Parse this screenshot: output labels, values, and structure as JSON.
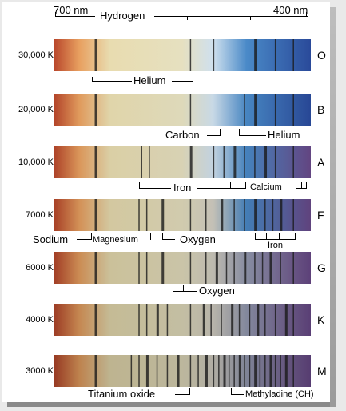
{
  "top_labels": {
    "left_nm": "700 nm",
    "right_nm": "400 nm",
    "hydrogen": "Hydrogen"
  },
  "rows": [
    {
      "temp": "30,000 K",
      "class": "O",
      "lines": [
        0.16,
        0.53,
        0.62,
        0.78,
        0.86,
        0.93
      ]
    },
    {
      "temp": "20,000 K",
      "class": "B",
      "lines": [
        0.16,
        0.53,
        0.74,
        0.78,
        0.86,
        0.93
      ]
    },
    {
      "temp": "10,000 K",
      "class": "A",
      "lines": [
        0.16,
        0.34,
        0.37,
        0.53,
        0.62,
        0.66,
        0.7,
        0.74,
        0.78,
        0.82,
        0.86,
        0.93
      ]
    },
    {
      "temp": "7000 K",
      "class": "F",
      "lines": [
        0.16,
        0.33,
        0.36,
        0.42,
        0.53,
        0.59,
        0.65,
        0.7,
        0.74,
        0.78,
        0.82,
        0.85,
        0.88,
        0.93
      ]
    },
    {
      "temp": "6000 K",
      "class": "G",
      "lines": [
        0.16,
        0.33,
        0.36,
        0.42,
        0.53,
        0.59,
        0.63,
        0.67,
        0.7,
        0.74,
        0.78,
        0.81,
        0.84,
        0.88,
        0.93
      ]
    },
    {
      "temp": "4000 K",
      "class": "K",
      "lines": [
        0.16,
        0.33,
        0.36,
        0.4,
        0.44,
        0.53,
        0.58,
        0.61,
        0.65,
        0.69,
        0.72,
        0.76,
        0.79,
        0.82,
        0.86,
        0.9,
        0.93
      ]
    },
    {
      "temp": "3000 K",
      "class": "M",
      "lines": [
        0.16,
        0.3,
        0.33,
        0.36,
        0.4,
        0.44,
        0.48,
        0.53,
        0.56,
        0.59,
        0.62,
        0.64,
        0.66,
        0.68,
        0.7,
        0.72,
        0.74,
        0.76,
        0.78,
        0.8,
        0.82,
        0.84,
        0.86,
        0.88,
        0.9,
        0.93
      ]
    }
  ],
  "annotations": {
    "helium_1": "Helium",
    "carbon": "Carbon",
    "helium_2": "Helium",
    "iron_1": "Iron",
    "calcium": "Calcium",
    "sodium": "Sodium",
    "magnesium": "Magnesium",
    "oxygen_1": "Oxygen",
    "iron_2": "Iron",
    "oxygen_2": "Oxygen",
    "titanium_oxide": "Titanium oxide",
    "methyladine": "Methyladine (CH)"
  },
  "colors": {
    "red": "#b8452a",
    "orange": "#e8a060",
    "yellow": "#e8dcb0",
    "blue": "#4a8ac8",
    "violet": "#6a4a8a"
  }
}
